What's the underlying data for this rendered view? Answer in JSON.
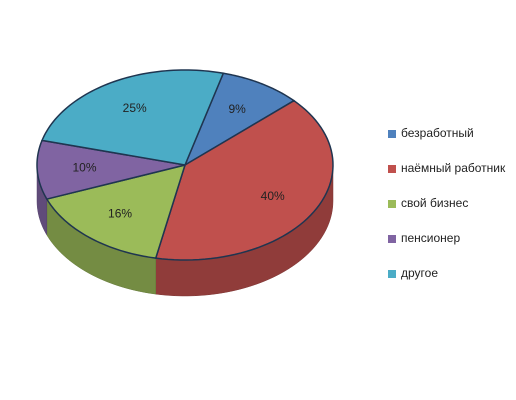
{
  "chart_data": {
    "type": "pie",
    "categories": [
      "безработный",
      "наёмный работник",
      "свой бизнес",
      "пенсионер",
      "другое"
    ],
    "values": [
      9,
      40,
      16,
      10,
      25
    ],
    "value_labels": [
      "9%",
      "40%",
      "16%",
      "10%",
      "25%"
    ],
    "colors": [
      "#4f81bd",
      "#c0504d",
      "#9bbb59",
      "#8064a2",
      "#4bacc6"
    ],
    "legend": "right"
  }
}
